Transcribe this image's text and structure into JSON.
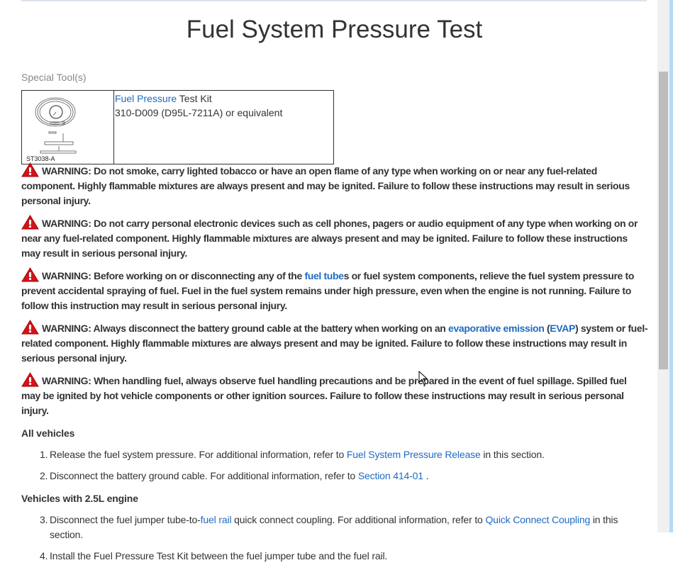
{
  "title": "Fuel System Pressure Test",
  "special_tools_label": "Special Tool(s)",
  "tool": {
    "image_label": "ST3038-A",
    "name_link": "Fuel Pressure",
    "name_rest": " Test Kit",
    "part": "310-D009 (D95L-7211A) or equivalent"
  },
  "warnings": [
    {
      "parts": [
        {
          "t": "WARNING: Do not smoke, carry lighted tobacco or have an open flame of any type when working on or near any fuel-related component. Highly flammable mixtures are always present and may be ignited. Failure to follow these instructions may result in serious personal injury."
        }
      ]
    },
    {
      "parts": [
        {
          "t": "WARNING: Do not carry personal electronic devices such as cell phones, pagers or audio equipment of any type when working on or near any fuel-related component. Highly flammable mixtures are always present and may be ignited. Failure to follow these instructions may result in serious personal injury."
        }
      ]
    },
    {
      "parts": [
        {
          "t": "WARNING: Before working on or disconnecting any of the "
        },
        {
          "t": "fuel tube",
          "link": true
        },
        {
          "t": "s or fuel system components, relieve the fuel system pressure to prevent accidental spraying of fuel. Fuel in the fuel system remains under high pressure, even when the engine is not running. Failure to follow this instruction may result in serious personal injury."
        }
      ]
    },
    {
      "parts": [
        {
          "t": "WARNING: Always disconnect the battery ground cable at the battery when working on an "
        },
        {
          "t": "evaporative emission",
          "link": true
        },
        {
          "t": " ("
        },
        {
          "t": "EVAP",
          "link": true
        },
        {
          "t": ") system or fuel-related component. Highly flammable mixtures are always present and may be ignited. Failure to follow these instructions may result in serious personal injury."
        }
      ]
    },
    {
      "parts": [
        {
          "t": "WARNING: When handling fuel, always observe fuel handling precautions and be prepared in the event of fuel spillage. Spilled fuel may be ignited by hot vehicle components or other ignition sources. Failure to follow these instructions may result in serious personal injury."
        }
      ]
    }
  ],
  "sections": [
    {
      "heading": "All vehicles",
      "steps": [
        {
          "num": "1.",
          "parts": [
            {
              "t": "Release the fuel system pressure. For additional information, refer to "
            },
            {
              "t": "Fuel System Pressure Release",
              "link": true
            },
            {
              "t": " in this section."
            }
          ]
        },
        {
          "num": "2.",
          "parts": [
            {
              "t": "Disconnect the battery ground cable. For additional information, refer to "
            },
            {
              "t": "Section  414-01",
              "link": true
            },
            {
              "t": " ."
            }
          ]
        }
      ]
    },
    {
      "heading": "Vehicles with 2.5L engine",
      "steps": [
        {
          "num": "3.",
          "parts": [
            {
              "t": "Disconnect the fuel jumper tube-to-"
            },
            {
              "t": "fuel rail",
              "link": true
            },
            {
              "t": " quick connect coupling. For additional information, refer to "
            },
            {
              "t": "Quick Connect Coupling",
              "link": true
            },
            {
              "t": " in this section."
            }
          ]
        },
        {
          "num": "4.",
          "parts": [
            {
              "t": "Install the Fuel Pressure Test Kit between the fuel jumper tube and the fuel rail."
            }
          ]
        }
      ]
    }
  ],
  "colors": {
    "link": "#1f6bc2",
    "warning_icon": "#d0151b",
    "text": "#333333"
  }
}
